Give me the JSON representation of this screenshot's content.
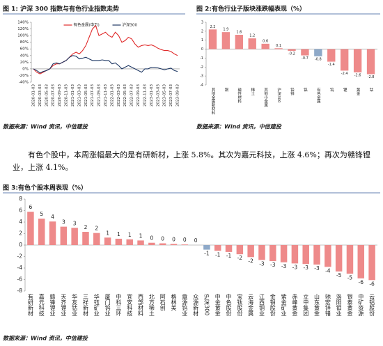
{
  "chart_data": [
    {
      "type": "line",
      "title": "图 1: 沪深 300 指数与有色行业指数走势",
      "source": "数据来源：Wind 资讯，中信建投",
      "categories": [
        "2020-01-03",
        null,
        "2020-03-03",
        null,
        "2020-05-03",
        null,
        "2020-07-03",
        null,
        "2020-09-03",
        null,
        "2020-11-03",
        null,
        "2021-01-03",
        null,
        "2021-03-03",
        null,
        "2021-05-03",
        null,
        "2021-07-03",
        null,
        "2021-09-03",
        null,
        "2021-11-03",
        null,
        "2022-01-03",
        null,
        "2022-03-03",
        null,
        "2022-05-03",
        null,
        "2022-07-03",
        null,
        "2022-09-03",
        null,
        "2022-11-03",
        null,
        "2023-01-03",
        null,
        "2023-03-03",
        null,
        "2023-05-03",
        null,
        "2023-07-03",
        null,
        "2023-09-03"
      ],
      "series": [
        {
          "name": "有色金属(申万)",
          "color": "#e02b2b",
          "values": [
            0,
            -10,
            -15,
            -10,
            -5,
            0,
            10,
            15,
            15,
            20,
            25,
            35,
            45,
            50,
            45,
            55,
            70,
            95,
            120,
            130,
            100,
            105,
            110,
            100,
            95,
            110,
            100,
            80,
            85,
            95,
            90,
            75,
            65,
            70,
            72,
            70,
            72,
            68,
            62,
            58,
            55,
            55,
            52,
            45,
            40
          ]
        },
        {
          "name": "沪深300",
          "color": "#1f3864",
          "values": [
            0,
            -5,
            -12,
            -8,
            -5,
            0,
            15,
            18,
            15,
            20,
            25,
            35,
            40,
            38,
            30,
            32,
            35,
            30,
            25,
            25,
            25,
            27,
            25,
            25,
            15,
            18,
            10,
            0,
            5,
            10,
            5,
            0,
            -5,
            -10,
            0,
            0,
            5,
            5,
            3,
            0,
            -3,
            0,
            2,
            -5,
            -8
          ]
        }
      ],
      "ylim": [
        -40,
        140
      ],
      "yticks": [
        {
          "value": -40,
          "label": "-40%"
        },
        {
          "value": -20,
          "label": "-20%"
        },
        {
          "value": 0,
          "label": "0%"
        },
        {
          "value": 20,
          "label": "20%"
        },
        {
          "value": 40,
          "label": "40%"
        },
        {
          "value": 60,
          "label": "60%"
        },
        {
          "value": 80,
          "label": "80%"
        },
        {
          "value": 100,
          "label": "100%"
        },
        {
          "value": 120,
          "label": "120%"
        },
        {
          "value": 140,
          "label": "140%"
        }
      ],
      "legend": "top",
      "grid": false
    },
    {
      "type": "bar",
      "title": "图 2:有色行业子版块涨跌幅表现（%）",
      "source": "数据来源：Wind 资讯，中信建投",
      "categories": [
        "其他金属新材料",
        "铜",
        "磁性材料",
        "稀土",
        "其他小金属",
        "沪深300",
        "铅锌",
        "铝",
        "有色金属",
        "钨",
        "锂",
        "黄金",
        "钴"
      ],
      "values": [
        2.2,
        1.9,
        1.6,
        1.2,
        0.6,
        0.1,
        -0.2,
        -0.7,
        -0.8,
        -1.4,
        -2.4,
        -2.6,
        -2.8
      ],
      "colors": [
        "#ee8a8a",
        "#ee8a8a",
        "#ee8a8a",
        "#ee8a8a",
        "#ee8a8a",
        "#ee8a8a",
        "#ee8a8a",
        "#ee8a8a",
        "#8ea9c8",
        "#ee8a8a",
        "#ee8a8a",
        "#ee8a8a",
        "#ee8a8a"
      ],
      "ylim": [
        -4,
        3
      ],
      "yticks": [
        -4,
        -3,
        -2,
        -1,
        0,
        1,
        2,
        3
      ],
      "grid": false
    },
    {
      "type": "bar",
      "title": "图 3:有色个股本周表现（%）",
      "source": "数据来源：Wind 资讯，中信建投",
      "categories": [
        "有研新材",
        "嘉元科技",
        "赣锋锂业",
        "天齐锂业",
        "华友钴业",
        "三祥新材",
        "华钰矿业",
        "厦门钨业",
        "中科三环",
        "宜安科技",
        "西部材料",
        "北方稀土",
        "阿石创",
        "格林美",
        "章源钨业",
        "众源新材",
        "沪深300",
        "中金黄金",
        "中色股份",
        "宝钛股份",
        "云海金属",
        "江西铜业",
        "金钼股份",
        "紫金矿业",
        "赤峰黄金",
        "立中集团",
        "山东黄金",
        "驰宏锌锗",
        "洛阳钼业",
        "银泰黄金",
        "中矿资源",
        "云铝股份"
      ],
      "values": [
        5.8,
        4.6,
        4.1,
        3.2,
        3.0,
        2.3,
        2.1,
        1.3,
        1.1,
        1.0,
        0.8,
        0.4,
        0.3,
        0.2,
        0.1,
        0.0,
        -0.8,
        -1.0,
        -1.2,
        -1.6,
        -2.1,
        -2.6,
        -2.8,
        -3.0,
        -3.2,
        -3.3,
        -3.4,
        -3.8,
        -4.6,
        -5.0,
        -5.8,
        -6.1
      ],
      "value_labels": [
        "6",
        "5",
        "4",
        "3",
        "3",
        "2",
        "2",
        "1",
        "1",
        "1",
        "1",
        "0",
        "0",
        "0",
        "0",
        "0",
        "-1",
        "-1",
        "-1",
        "-2",
        "-2",
        "-3",
        "-3",
        "-3",
        "-3",
        "-3",
        "-3",
        "-4",
        "-5",
        "-5",
        "-6",
        "-6"
      ],
      "colors": [
        "#ee8a8a",
        "#ee8a8a",
        "#ee8a8a",
        "#ee8a8a",
        "#ee8a8a",
        "#ee8a8a",
        "#ee8a8a",
        "#ee8a8a",
        "#ee8a8a",
        "#ee8a8a",
        "#ee8a8a",
        "#ee8a8a",
        "#ee8a8a",
        "#ee8a8a",
        "#ee8a8a",
        "#ee8a8a",
        "#8ea9c8",
        "#ee8a8a",
        "#ee8a8a",
        "#ee8a8a",
        "#ee8a8a",
        "#ee8a8a",
        "#ee8a8a",
        "#ee8a8a",
        "#ee8a8a",
        "#ee8a8a",
        "#ee8a8a",
        "#ee8a8a",
        "#ee8a8a",
        "#ee8a8a",
        "#ee8a8a",
        "#ee8a8a"
      ],
      "ylim": [
        -8,
        8
      ],
      "yticks": [
        -8,
        -6,
        -4,
        -2,
        0,
        2,
        4,
        6,
        8
      ],
      "grid": false
    }
  ],
  "paragraph": "有色个股中，本周涨幅最大的是有研新材，上涨 5.8%。其次为嘉元科技，上涨 4.6%；再次为赣锋锂业，上涨 4.1%。"
}
